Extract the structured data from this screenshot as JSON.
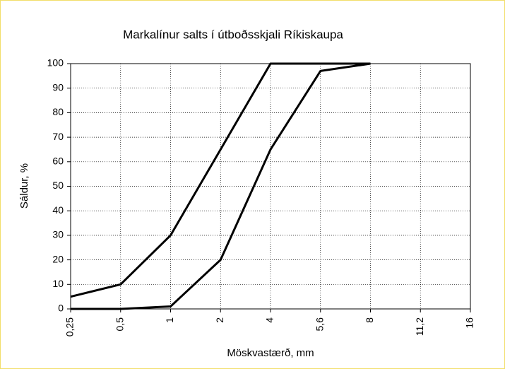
{
  "chart_data": {
    "type": "line",
    "title": "Markalínur salts í útboðsskjali Ríkiskaupa",
    "x_label": "Möskvastærð, mm",
    "y_label": "Sáldur, %",
    "categories": [
      "0,25",
      "0,5",
      "1",
      "2",
      "4",
      "5,6",
      "8",
      "11,2",
      "16"
    ],
    "series": [
      {
        "color": "#000000",
        "values": [
          5,
          10,
          30,
          65,
          100,
          100,
          100,
          null,
          null
        ]
      },
      {
        "color": "#000000",
        "values": [
          0,
          0,
          1,
          20,
          65,
          97,
          100,
          null,
          null
        ]
      }
    ],
    "ylim": [
      0,
      100
    ],
    "yticks": [
      0,
      10,
      20,
      30,
      40,
      50,
      60,
      70,
      80,
      90,
      100
    ],
    "grid": true
  }
}
